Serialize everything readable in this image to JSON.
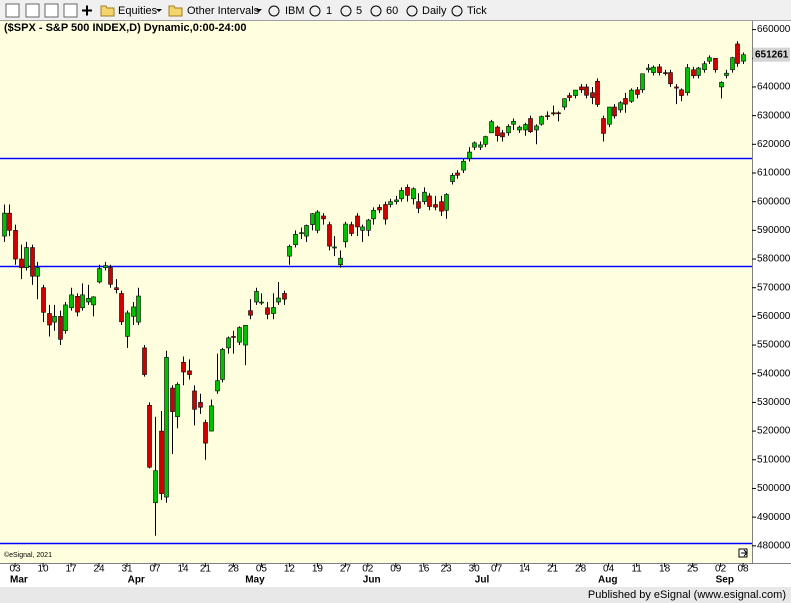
{
  "toolbar": [
    "Equities",
    "Other Intervals",
    "IBM",
    "1",
    "5",
    "60",
    "Daily",
    "Tick"
  ],
  "footer": "Published by eSignal (www.esignal.com)",
  "chart_data": {
    "type": "candlestick",
    "title": "($SPX - S&P 500 INDEX,D) Dynamic,0:00-24:00",
    "annotation": "©eSignal, 2021",
    "up_color": "#00c000",
    "down_color": "#d00000",
    "line_color": "#0000ff",
    "categories": [
      null,
      null,
      "03",
      null,
      null,
      null,
      null,
      "10",
      null,
      null,
      null,
      null,
      "17",
      null,
      null,
      null,
      null,
      "24",
      null,
      null,
      null,
      null,
      "31",
      null,
      null,
      null,
      null,
      "07",
      null,
      null,
      null,
      null,
      "14",
      null,
      null,
      null,
      "21",
      null,
      null,
      null,
      null,
      "28",
      null,
      null,
      null,
      null,
      "05",
      null,
      null,
      null,
      null,
      "12",
      null,
      null,
      null,
      null,
      "19",
      null,
      null,
      null,
      null,
      "27",
      null,
      null,
      null,
      "02",
      null,
      null,
      null,
      null,
      "09",
      null,
      null,
      null,
      null,
      "16",
      null,
      null,
      null,
      "23",
      null,
      null,
      null,
      null,
      "30",
      null,
      null,
      null,
      "07",
      null,
      null,
      null,
      null,
      "14",
      null,
      null,
      null,
      null,
      "21",
      null,
      null,
      null,
      null,
      "28",
      null,
      null,
      null,
      null,
      "04",
      null,
      null,
      null,
      null,
      "11",
      null,
      null,
      null,
      null,
      "18",
      null,
      null,
      null,
      null,
      "25",
      null,
      null,
      null,
      null,
      "02",
      null,
      null,
      null,
      "08"
    ],
    "months": [
      null,
      null,
      "Mar",
      null,
      null,
      null,
      null,
      null,
      null,
      null,
      null,
      null,
      null,
      null,
      null,
      null,
      null,
      null,
      null,
      null,
      null,
      null,
      null,
      "Apr",
      null,
      null,
      null,
      null,
      null,
      null,
      null,
      null,
      null,
      null,
      null,
      null,
      null,
      null,
      null,
      null,
      null,
      null,
      null,
      null,
      "May",
      null,
      null,
      null,
      null,
      null,
      null,
      null,
      null,
      null,
      null,
      null,
      null,
      null,
      null,
      null,
      null,
      null,
      null,
      null,
      null,
      "Jun",
      null,
      null,
      null,
      null,
      null,
      null,
      null,
      null,
      null,
      null,
      null,
      null,
      null,
      null,
      null,
      null,
      null,
      null,
      null,
      "Jul",
      null,
      null,
      null,
      null,
      null,
      null,
      null,
      null,
      null,
      null,
      null,
      null,
      null,
      null,
      null,
      null,
      null,
      null,
      null,
      null,
      null,
      "Aug",
      null,
      null,
      null,
      null,
      null,
      null,
      null,
      null,
      null,
      null,
      null,
      null,
      null,
      null,
      null,
      null,
      null,
      null,
      null,
      null,
      "Sep",
      null,
      null,
      null,
      null
    ],
    "open": [
      588000,
      596000,
      590000,
      580000,
      577000,
      584000,
      574000,
      570000,
      561000,
      558000,
      560000,
      555000,
      563000,
      567000,
      563000,
      565000,
      564000,
      572000,
      577000,
      577000,
      570000,
      568000,
      553000,
      560000,
      558000,
      549000,
      529000,
      495000,
      520000,
      497000,
      535000,
      525000,
      544000,
      541000,
      534000,
      530000,
      523000,
      520000,
      534000,
      538000,
      549000,
      553000,
      551000,
      550000,
      562000,
      565000,
      565000,
      563000,
      561000,
      565000,
      568000,
      581000,
      585000,
      589000,
      588000,
      592000,
      590000,
      595000,
      592000,
      584000,
      578000,
      586000,
      592000,
      595000,
      590000,
      590000,
      594000,
      598000,
      599000,
      599000,
      600000,
      601000,
      605000,
      601000,
      600000,
      600000,
      602000,
      599000,
      600000,
      597000,
      607000,
      610000,
      611000,
      615000,
      619000,
      619000,
      620000,
      624000,
      626000,
      624000,
      624000,
      627000,
      625000,
      625000,
      629000,
      625000,
      627000,
      630000,
      631000,
      631000,
      633000,
      637000,
      637000,
      640000,
      640000,
      638000,
      642000,
      629000,
      627000,
      633000,
      632000,
      636000,
      635000,
      639000,
      639000,
      646000,
      645000,
      647000,
      645000,
      645000,
      640000,
      639000,
      638000,
      646000,
      644000,
      646000,
      649000,
      650000,
      640000,
      644000,
      646000,
      655000,
      649000
    ],
    "high": [
      599000,
      599000,
      592000,
      585000,
      586000,
      585000,
      579000,
      571000,
      564000,
      564000,
      562000,
      565000,
      570000,
      568000,
      571500,
      571000,
      567000,
      578000,
      579000,
      578000,
      573000,
      569000,
      562000,
      565000,
      570000,
      550000,
      530000,
      525000,
      527000,
      548000,
      536000,
      537000,
      546000,
      545000,
      536000,
      533000,
      524000,
      531000,
      547000,
      549000,
      553000,
      555000,
      556500,
      557000,
      566000,
      570000,
      568000,
      565000,
      568000,
      572000,
      569000,
      585000,
      590000,
      591000,
      592000,
      596000,
      597000,
      596000,
      593000,
      588000,
      583000,
      593000,
      593000,
      596000,
      592000,
      594000,
      598000,
      599000,
      600000,
      601000,
      602000,
      605000,
      606000,
      605000,
      603000,
      605000,
      603000,
      602000,
      602000,
      603000,
      610000,
      611000,
      615000,
      619000,
      621000,
      621000,
      623000,
      628500,
      626500,
      625000,
      627000,
      629000,
      626500,
      627500,
      630000,
      627000,
      630000,
      631500,
      633500,
      631500,
      636000,
      638000,
      639000,
      641000,
      641000,
      640000,
      643000,
      630000,
      633000,
      634000,
      635000,
      638000,
      639500,
      640000,
      644600,
      648000,
      647500,
      648000,
      646000,
      646000,
      641000,
      639500,
      648000,
      647000,
      647000,
      649000,
      651000,
      650000,
      642000,
      646000,
      650500,
      656000,
      652000
    ],
    "low": [
      586000,
      588000,
      578000,
      573000,
      576000,
      571000,
      566000,
      558000,
      553000,
      555000,
      550000,
      554000,
      562000,
      560000,
      562000,
      564000,
      560000,
      571500,
      576000,
      570000,
      568000,
      557000,
      549000,
      557000,
      557000,
      539000,
      507000,
      483500,
      496000,
      495000,
      512000,
      521000,
      536000,
      538000,
      522000,
      526000,
      510000,
      520000,
      533000,
      537000,
      547000,
      547000,
      550000,
      543000,
      559000,
      564000,
      564000,
      559000,
      559000,
      564000,
      564000,
      578000,
      584000,
      587000,
      586000,
      590000,
      589000,
      592000,
      583000,
      581000,
      577000,
      584000,
      588000,
      588000,
      586000,
      588000,
      592000,
      596000,
      592000,
      598000,
      599000,
      600000,
      600000,
      599000,
      596000,
      599000,
      597000,
      597000,
      595000,
      594000,
      606000,
      608000,
      610000,
      614000,
      618000,
      618000,
      619000,
      624000,
      621000,
      621000,
      623000,
      625000,
      624000,
      623000,
      624000,
      620000,
      626500,
      628500,
      630000,
      628000,
      632000,
      635000,
      636000,
      638000,
      636000,
      634000,
      633000,
      621000,
      626000,
      629000,
      631000,
      631000,
      634500,
      636000,
      638000,
      645000,
      644000,
      644000,
      644000,
      640000,
      634000,
      635000,
      637000,
      643000,
      643000,
      645000,
      648000,
      645000,
      636000,
      643000,
      645000,
      647000,
      648000
    ],
    "close": [
      596000,
      590000,
      580000,
      577000,
      584000,
      574000,
      577000,
      561400,
      557000,
      560000,
      552000,
      564000,
      567500,
      561500,
      567500,
      566300,
      566800,
      576700,
      577700,
      571200,
      569300,
      558100,
      561200,
      563300,
      567100,
      539700,
      507400,
      506200,
      498200,
      545700,
      526800,
      536300,
      540600,
      539700,
      527600,
      528300,
      515800,
      528800,
      537600,
      548500,
      552500,
      552900,
      556100,
      556900,
      560400,
      568700,
      565000,
      560700,
      563100,
      566400,
      566000,
      584400,
      588600,
      589200,
      591700,
      595800,
      596400,
      594000,
      584500,
      584200,
      580300,
      592200,
      588900,
      591200,
      591200,
      593600,
      597000,
      597100,
      593900,
      600000,
      600600,
      603900,
      602200,
      604500,
      597700,
      603300,
      598300,
      598100,
      596700,
      602500,
      609200,
      609200,
      614100,
      617300,
      620500,
      619800,
      622700,
      627900,
      623000,
      622600,
      626300,
      628000,
      626000,
      626900,
      624400,
      626400,
      629700,
      629700,
      630600,
      630900,
      635900,
      636300,
      638900,
      639000,
      637100,
      636300,
      633900,
      623800,
      633000,
      629900,
      634500,
      634000,
      638900,
      637400,
      644600,
      646600,
      646900,
      645000,
      644900,
      641100,
      639600,
      637000,
      646700,
      643900,
      646600,
      648100,
      650200,
      646000,
      641600,
      644800,
      650200,
      648200,
      651261
    ],
    "hlines": [
      615100,
      577500,
      481000
    ],
    "ylim": [
      474000,
      663000
    ],
    "yticks": [
      480000,
      490000,
      500000,
      510000,
      520000,
      530000,
      540000,
      550000,
      560000,
      570000,
      580000,
      590000,
      600000,
      610000,
      620000,
      630000,
      640000,
      650000,
      660000
    ]
  }
}
